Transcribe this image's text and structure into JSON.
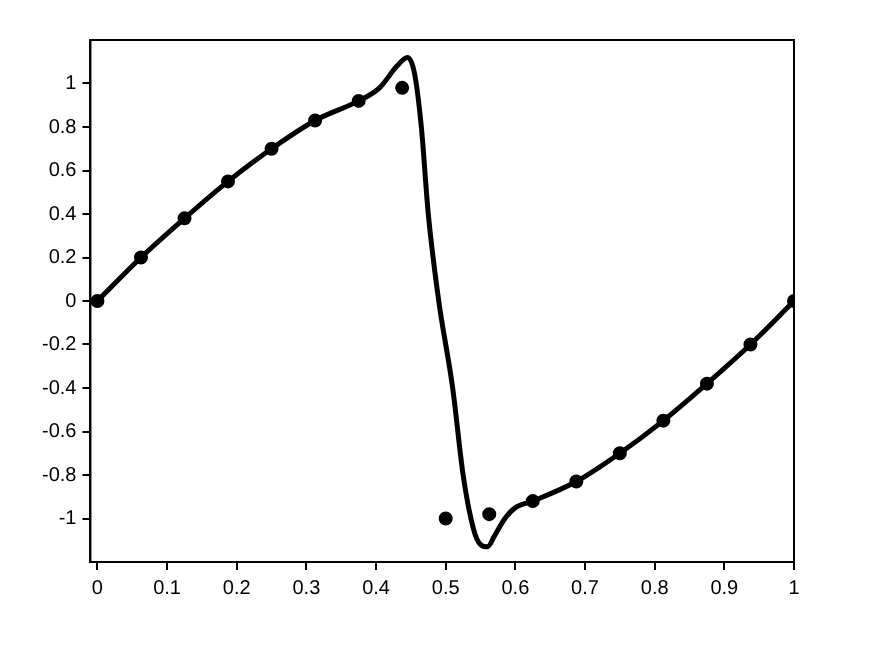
{
  "chart_data": {
    "type": "line",
    "xlim": [
      -0.01,
      1
    ],
    "xticks": [
      0,
      0.1,
      0.2,
      0.3,
      0.4,
      0.5,
      0.6,
      0.7,
      0.8,
      0.9,
      1
    ],
    "ylim": [
      -1.2,
      1.2
    ],
    "yticks": [
      -1,
      -0.8,
      -0.6,
      -0.4,
      -0.2,
      0,
      0.2,
      0.4,
      0.6,
      0.8,
      1
    ],
    "grid": false,
    "legend": false,
    "series": [
      {
        "color": "#000000",
        "marker": "none",
        "line_style": "solid",
        "x": [
          0,
          0.0625,
          0.125,
          0.1875,
          0.25,
          0.3125,
          0.375,
          0.405,
          0.43,
          0.445,
          0.455,
          0.465,
          0.475,
          0.49,
          0.51,
          0.525,
          0.54,
          0.55,
          0.56,
          0.57,
          0.585,
          0.6,
          0.625,
          0.6875,
          0.75,
          0.8125,
          0.875,
          0.9375,
          1
        ],
        "values": [
          0,
          0.2,
          0.38,
          0.55,
          0.7,
          0.83,
          0.92,
          0.98,
          1.08,
          1.12,
          1.05,
          0.8,
          0.4,
          0,
          -0.4,
          -0.8,
          -1.05,
          -1.12,
          -1.13,
          -1.08,
          -1.0,
          -0.95,
          -0.92,
          -0.83,
          -0.7,
          -0.55,
          -0.38,
          -0.2,
          0
        ]
      },
      {
        "type": "scatter",
        "color": "#000000",
        "marker": "circle",
        "x": [
          0,
          0.0625,
          0.125,
          0.1875,
          0.25,
          0.3125,
          0.375,
          0.4375,
          0.5,
          0.5625,
          0.625,
          0.6875,
          0.75,
          0.8125,
          0.875,
          0.9375,
          1
        ],
        "values": [
          0,
          0.2,
          0.38,
          0.55,
          0.7,
          0.83,
          0.92,
          0.98,
          -1.0,
          -0.98,
          -0.92,
          -0.83,
          -0.7,
          -0.55,
          -0.38,
          -0.2,
          0
        ]
      }
    ]
  }
}
